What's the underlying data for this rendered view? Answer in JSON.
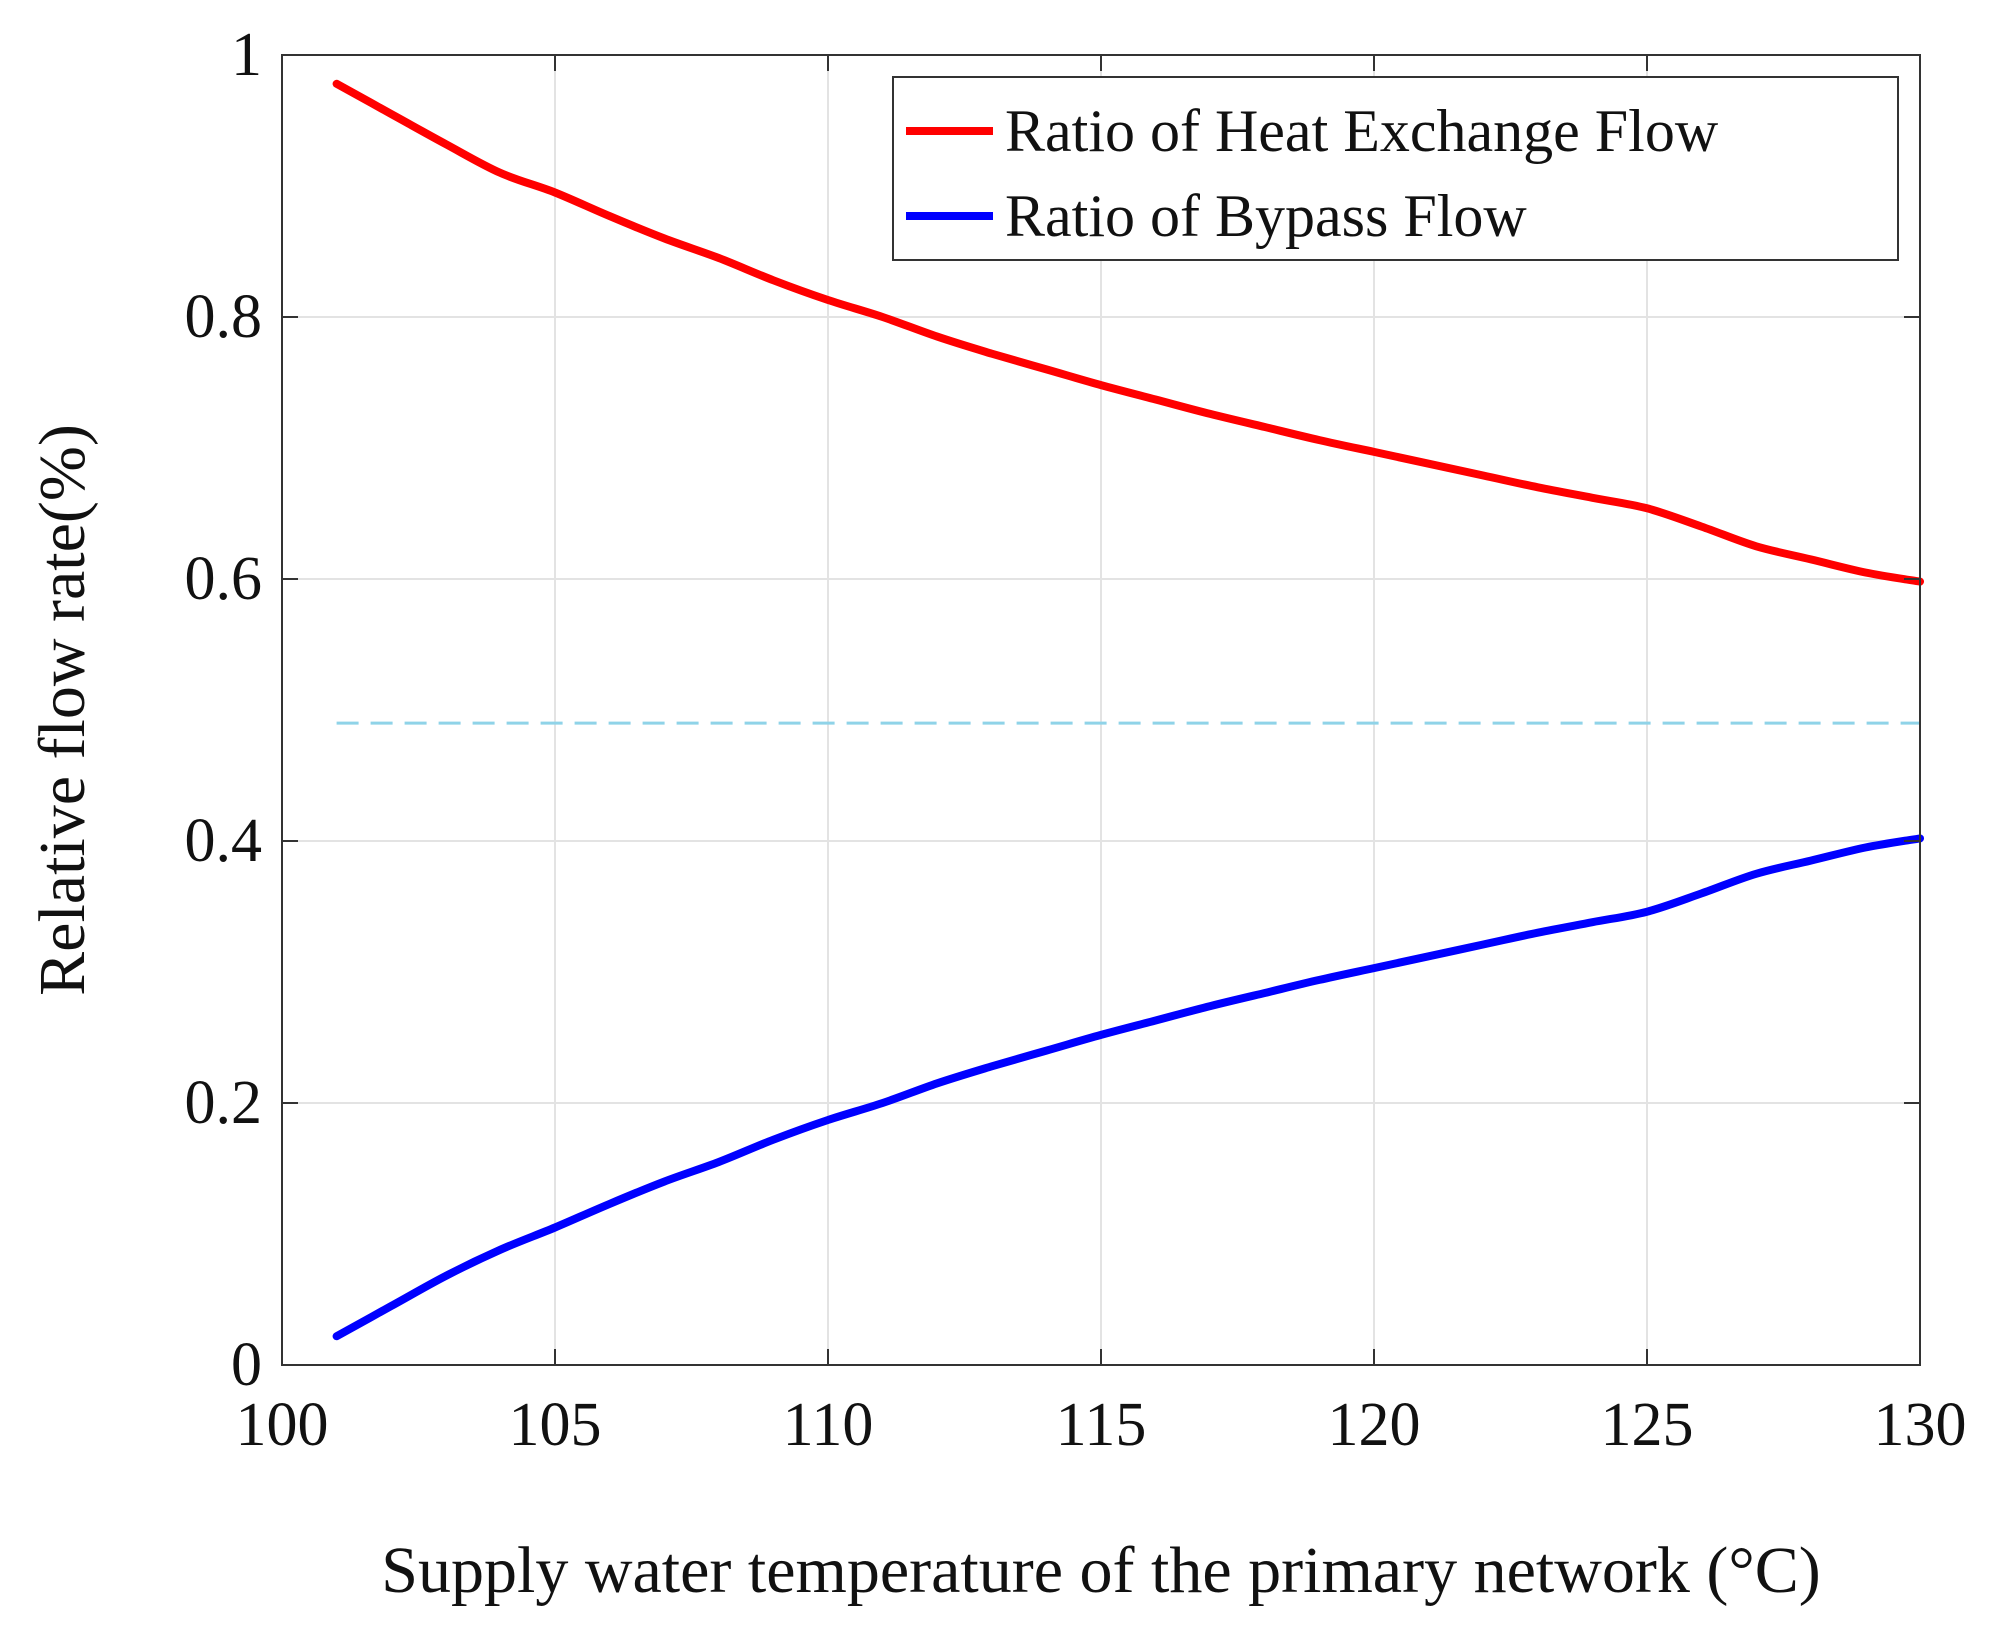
{
  "chart_data": {
    "type": "line",
    "title": "",
    "xlabel": "Supply water temperature of the primary network (°C)",
    "ylabel": "Relative flow rate(%)",
    "xlim": [
      100,
      130
    ],
    "ylim": [
      0,
      1
    ],
    "xticks": [
      100,
      105,
      110,
      115,
      120,
      125,
      130
    ],
    "xtick_labels": [
      "100",
      "105",
      "110",
      "115",
      "120",
      "125",
      "130"
    ],
    "yticks": [
      0,
      0.2,
      0.4,
      0.6,
      0.8,
      1
    ],
    "ytick_labels": [
      "0",
      "0.2",
      "0.4",
      "0.6",
      "0.8",
      "1"
    ],
    "grid": true,
    "legend_position": "top-right",
    "x": [
      101,
      102,
      103,
      104,
      105,
      106,
      107,
      108,
      109,
      110,
      111,
      112,
      113,
      114,
      115,
      116,
      117,
      118,
      119,
      120,
      121,
      122,
      123,
      124,
      125,
      126,
      127,
      128,
      129,
      130
    ],
    "series": [
      {
        "name": "Ratio of Heat Exchange Flow",
        "color": "#ff0000",
        "values": [
          0.978,
          0.955,
          0.932,
          0.91,
          0.895,
          0.877,
          0.86,
          0.845,
          0.828,
          0.813,
          0.8,
          0.785,
          0.772,
          0.76,
          0.748,
          0.737,
          0.726,
          0.716,
          0.706,
          0.697,
          0.688,
          0.679,
          0.67,
          0.662,
          0.654,
          0.64,
          0.625,
          0.615,
          0.605,
          0.598
        ]
      },
      {
        "name": "Ratio of Bypass Flow",
        "color": "#0000ff",
        "values": [
          0.022,
          0.045,
          0.068,
          0.088,
          0.105,
          0.123,
          0.14,
          0.155,
          0.172,
          0.187,
          0.2,
          0.215,
          0.228,
          0.24,
          0.252,
          0.263,
          0.274,
          0.284,
          0.294,
          0.303,
          0.312,
          0.321,
          0.33,
          0.338,
          0.346,
          0.36,
          0.375,
          0.385,
          0.395,
          0.402
        ]
      }
    ],
    "reference_line": {
      "y": 0.49,
      "color": "#8fd3e8",
      "style": "dashed"
    }
  }
}
